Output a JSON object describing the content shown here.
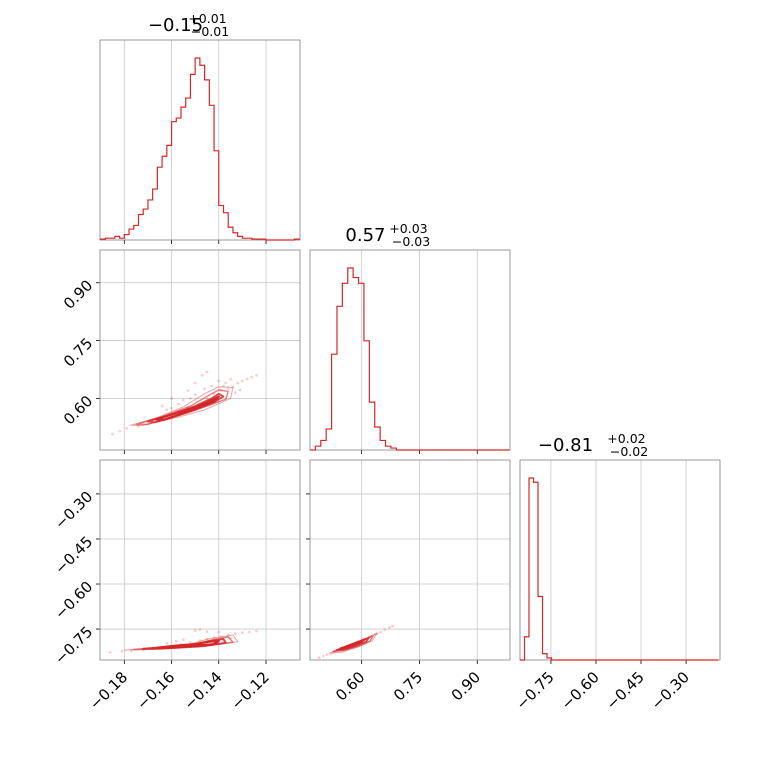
{
  "colors": {
    "series": "#d62728",
    "grid": "#c8c8c8",
    "frame": "#808080"
  },
  "titles": [
    {
      "value": "−0.15",
      "plus": "+0.01",
      "minus": "−0.01"
    },
    {
      "value": "0.57",
      "plus": "+0.03",
      "minus": "−0.03"
    },
    {
      "value": "−0.81",
      "plus": "+0.02",
      "minus": "−0.02"
    }
  ],
  "axes": {
    "p0": {
      "ticks": [
        -0.18,
        -0.16,
        -0.14,
        -0.12
      ],
      "labels": [
        "−0.18",
        "−0.16",
        "−0.14",
        "−0.12"
      ],
      "range": [
        -0.1903,
        -0.1056
      ]
    },
    "p1": {
      "ticks": [
        0.6,
        0.75,
        0.9
      ],
      "labels": [
        "0.60",
        "0.75",
        "0.90"
      ],
      "range": [
        0.466,
        0.985
      ]
    },
    "p2": {
      "ticks": [
        -0.3,
        -0.45,
        -0.6,
        -0.75
      ],
      "labels": [
        "−0.30",
        "−0.45",
        "−0.60",
        "−0.75"
      ],
      "range": [
        -0.853,
        -0.187
      ]
    }
  },
  "chart_data": {
    "type": "corner",
    "grid": true,
    "color": "#d62728",
    "parameters": [
      {
        "index": 0,
        "median": -0.15,
        "err_plus": 0.01,
        "err_minus": 0.01
      },
      {
        "index": 1,
        "median": 0.57,
        "err_plus": 0.03,
        "err_minus": 0.03
      },
      {
        "index": 2,
        "median": -0.81,
        "err_plus": 0.02,
        "err_minus": 0.02
      }
    ],
    "histograms": [
      {
        "param": 0,
        "bin_edges": [
          -0.19,
          -0.188,
          -0.186,
          -0.184,
          -0.182,
          -0.18,
          -0.178,
          -0.176,
          -0.174,
          -0.172,
          -0.17,
          -0.168,
          -0.166,
          -0.164,
          -0.162,
          -0.16,
          -0.158,
          -0.156,
          -0.154,
          -0.152,
          -0.15,
          -0.148,
          -0.146,
          -0.144,
          -0.142,
          -0.14,
          -0.138,
          -0.136,
          -0.134,
          -0.132,
          -0.13,
          -0.128,
          -0.126,
          -0.124,
          -0.122,
          -0.12,
          -0.118,
          -0.116,
          -0.114,
          -0.112,
          -0.11,
          -0.108,
          -0.106
        ],
        "counts": [
          0.005,
          0.01,
          0.01,
          0.02,
          0.01,
          0.03,
          0.06,
          0.08,
          0.14,
          0.17,
          0.22,
          0.28,
          0.4,
          0.46,
          0.52,
          0.65,
          0.67,
          0.73,
          0.78,
          0.91,
          1.0,
          0.96,
          0.88,
          0.74,
          0.49,
          0.19,
          0.15,
          0.07,
          0.04,
          0.02,
          0.01,
          0.01,
          0.005,
          0.005,
          0.005,
          0.0,
          0.0,
          0.0,
          0.0,
          0.0,
          0.0,
          0.005
        ]
      },
      {
        "param": 1,
        "bin_edges": [
          0.466,
          0.48,
          0.494,
          0.508,
          0.522,
          0.536,
          0.55,
          0.564,
          0.578,
          0.592,
          0.606,
          0.62,
          0.634,
          0.648,
          0.662,
          0.676,
          0.69,
          0.704,
          0.718,
          0.732,
          0.746,
          0.76,
          0.774,
          0.788,
          0.802,
          0.816,
          0.83,
          0.844,
          0.858,
          0.872,
          0.886,
          0.9,
          0.914,
          0.928,
          0.942,
          0.956,
          0.97,
          0.984
        ],
        "counts": [
          0.0,
          0.02,
          0.05,
          0.11,
          0.5,
          0.75,
          0.87,
          0.95,
          0.9,
          0.87,
          0.57,
          0.25,
          0.12,
          0.05,
          0.02,
          0.01,
          0.0,
          0.0,
          0.0,
          0.0,
          0.0,
          0.0,
          0.0,
          0.0,
          0.0,
          0.0,
          0.0,
          0.0,
          0.0,
          0.0,
          0.0,
          0.0,
          0.0,
          0.0,
          0.0,
          0.0,
          0.0
        ]
      },
      {
        "param": 2,
        "bin_edges": [
          -0.853,
          -0.838,
          -0.823,
          -0.808,
          -0.793,
          -0.778,
          -0.763,
          -0.748,
          -0.733,
          -0.718,
          -0.703,
          -0.688,
          -0.673,
          -0.658,
          -0.643,
          -0.628,
          -0.613,
          -0.598,
          -0.583,
          -0.568,
          -0.553,
          -0.538,
          -0.523,
          -0.508,
          -0.493,
          -0.478,
          -0.463,
          -0.448,
          -0.433,
          -0.418,
          -0.403,
          -0.388,
          -0.373,
          -0.358,
          -0.343,
          -0.328,
          -0.313,
          -0.298,
          -0.283,
          -0.268,
          -0.253,
          -0.238,
          -0.223,
          -0.208,
          -0.193
        ],
        "counts": [
          0.0,
          0.11,
          0.86,
          0.84,
          0.3,
          0.03,
          0.01,
          0.0,
          0.0,
          0.0,
          0.0,
          0.0,
          0.0,
          0.0,
          0.0,
          0.0,
          0.0,
          0.0,
          0.0,
          0.0,
          0.0,
          0.0,
          0.0,
          0.0,
          0.0,
          0.0,
          0.0,
          0.0,
          0.0,
          0.0,
          0.0,
          0.0,
          0.0,
          0.0,
          0.0,
          0.0,
          0.0,
          0.0,
          0.0,
          0.0,
          0.0,
          0.0,
          0.0,
          0.0
        ]
      }
    ],
    "pairs": [
      {
        "x_param": 0,
        "y_param": 1,
        "contours": [
          [
            [
              -0.1665,
              0.545
            ],
            [
              -0.158,
              0.562
            ],
            [
              -0.15,
              0.577
            ],
            [
              -0.142,
              0.598
            ],
            [
              -0.14,
              0.605
            ],
            [
              -0.142,
              0.592
            ],
            [
              -0.148,
              0.578
            ],
            [
              -0.156,
              0.56
            ],
            [
              -0.163,
              0.545
            ]
          ],
          [
            [
              -0.17,
              0.54
            ],
            [
              -0.16,
              0.558
            ],
            [
              -0.15,
              0.58
            ],
            [
              -0.143,
              0.6
            ],
            [
              -0.14,
              0.612
            ],
            [
              -0.138,
              0.605
            ],
            [
              -0.142,
              0.59
            ],
            [
              -0.15,
              0.57
            ],
            [
              -0.16,
              0.55
            ],
            [
              -0.167,
              0.538
            ]
          ],
          [
            [
              -0.175,
              0.532
            ],
            [
              -0.164,
              0.553
            ],
            [
              -0.152,
              0.58
            ],
            [
              -0.145,
              0.605
            ],
            [
              -0.14,
              0.622
            ],
            [
              -0.136,
              0.618
            ],
            [
              -0.137,
              0.598
            ],
            [
              -0.145,
              0.58
            ],
            [
              -0.156,
              0.558
            ],
            [
              -0.17,
              0.533
            ]
          ],
          [
            [
              -0.1775,
              0.53
            ],
            [
              -0.166,
              0.55
            ],
            [
              -0.155,
              0.578
            ],
            [
              -0.146,
              0.612
            ],
            [
              -0.14,
              0.63
            ],
            [
              -0.134,
              0.628
            ],
            [
              -0.135,
              0.6
            ],
            [
              -0.146,
              0.57
            ],
            [
              -0.158,
              0.55
            ],
            [
              -0.172,
              0.53
            ]
          ]
        ],
        "samples": [
          [
            -0.185,
            0.507
          ],
          [
            -0.179,
            0.522
          ],
          [
            -0.182,
            0.515
          ],
          [
            -0.174,
            0.528
          ],
          [
            -0.17,
            0.538
          ],
          [
            -0.166,
            0.545
          ],
          [
            -0.161,
            0.558
          ],
          [
            -0.157,
            0.567
          ],
          [
            -0.153,
            0.575
          ],
          [
            -0.148,
            0.585
          ],
          [
            -0.145,
            0.6
          ],
          [
            -0.142,
            0.612
          ],
          [
            -0.139,
            0.62
          ],
          [
            -0.136,
            0.625
          ],
          [
            -0.134,
            0.63
          ],
          [
            -0.132,
            0.64
          ],
          [
            -0.13,
            0.645
          ],
          [
            -0.128,
            0.65
          ],
          [
            -0.126,
            0.655
          ],
          [
            -0.124,
            0.66
          ],
          [
            -0.135,
            0.65
          ],
          [
            -0.137,
            0.64
          ],
          [
            -0.14,
            0.645
          ],
          [
            -0.143,
            0.632
          ],
          [
            -0.146,
            0.625
          ],
          [
            -0.15,
            0.61
          ],
          [
            -0.152,
            0.6
          ],
          [
            -0.155,
            0.595
          ],
          [
            -0.157,
            0.585
          ],
          [
            -0.16,
            0.575
          ],
          [
            -0.162,
            0.57
          ],
          [
            -0.147,
            0.66
          ],
          [
            -0.145,
            0.668
          ],
          [
            -0.138,
            0.632
          ],
          [
            -0.133,
            0.615
          ],
          [
            -0.131,
            0.622
          ],
          [
            -0.15,
            0.64
          ],
          [
            -0.153,
            0.62
          ],
          [
            -0.16,
            0.6
          ],
          [
            -0.164,
            0.58
          ]
        ]
      },
      {
        "x_param": 0,
        "y_param": 2,
        "contours": [
          [
            [
              -0.166,
              -0.812
            ],
            [
              -0.158,
              -0.805
            ],
            [
              -0.15,
              -0.8
            ],
            [
              -0.144,
              -0.792
            ],
            [
              -0.14,
              -0.79
            ],
            [
              -0.142,
              -0.8
            ],
            [
              -0.15,
              -0.806
            ],
            [
              -0.158,
              -0.81
            ]
          ],
          [
            [
              -0.172,
              -0.815
            ],
            [
              -0.16,
              -0.808
            ],
            [
              -0.15,
              -0.802
            ],
            [
              -0.144,
              -0.79
            ],
            [
              -0.138,
              -0.783
            ],
            [
              -0.137,
              -0.795
            ],
            [
              -0.145,
              -0.805
            ],
            [
              -0.16,
              -0.813
            ]
          ],
          [
            [
              -0.176,
              -0.818
            ],
            [
              -0.162,
              -0.81
            ],
            [
              -0.15,
              -0.8
            ],
            [
              -0.143,
              -0.786
            ],
            [
              -0.136,
              -0.776
            ],
            [
              -0.134,
              -0.794
            ],
            [
              -0.146,
              -0.807
            ],
            [
              -0.164,
              -0.816
            ]
          ],
          [
            [
              -0.18,
              -0.82
            ],
            [
              -0.166,
              -0.812
            ],
            [
              -0.152,
              -0.8
            ],
            [
              -0.144,
              -0.782
            ],
            [
              -0.134,
              -0.77
            ],
            [
              -0.132,
              -0.792
            ],
            [
              -0.148,
              -0.81
            ],
            [
              -0.168,
              -0.818
            ]
          ]
        ],
        "samples": [
          [
            -0.186,
            -0.828
          ],
          [
            -0.181,
            -0.824
          ],
          [
            -0.177,
            -0.822
          ],
          [
            -0.172,
            -0.82
          ],
          [
            -0.168,
            -0.815
          ],
          [
            -0.164,
            -0.81
          ],
          [
            -0.16,
            -0.806
          ],
          [
            -0.156,
            -0.8
          ],
          [
            -0.152,
            -0.795
          ],
          [
            -0.148,
            -0.788
          ],
          [
            -0.145,
            -0.783
          ],
          [
            -0.142,
            -0.778
          ],
          [
            -0.139,
            -0.775
          ],
          [
            -0.136,
            -0.77
          ],
          [
            -0.133,
            -0.765
          ],
          [
            -0.13,
            -0.762
          ],
          [
            -0.127,
            -0.76
          ],
          [
            -0.124,
            -0.757
          ],
          [
            -0.15,
            -0.755
          ],
          [
            -0.148,
            -0.752
          ],
          [
            -0.145,
            -0.758
          ],
          [
            -0.14,
            -0.76
          ],
          [
            -0.155,
            -0.785
          ],
          [
            -0.158,
            -0.79
          ],
          [
            -0.162,
            -0.798
          ],
          [
            -0.135,
            -0.78
          ],
          [
            -0.138,
            -0.79
          ],
          [
            -0.141,
            -0.795
          ]
        ]
      },
      {
        "x_param": 1,
        "y_param": 2,
        "contours": [
          [
            [
              0.545,
              -0.815
            ],
            [
              0.56,
              -0.808
            ],
            [
              0.578,
              -0.8
            ],
            [
              0.598,
              -0.79
            ],
            [
              0.605,
              -0.787
            ],
            [
              0.595,
              -0.796
            ],
            [
              0.575,
              -0.806
            ],
            [
              0.555,
              -0.814
            ]
          ],
          [
            [
              0.535,
              -0.82
            ],
            [
              0.556,
              -0.81
            ],
            [
              0.58,
              -0.798
            ],
            [
              0.605,
              -0.786
            ],
            [
              0.618,
              -0.78
            ],
            [
              0.612,
              -0.792
            ],
            [
              0.585,
              -0.806
            ],
            [
              0.555,
              -0.818
            ]
          ],
          [
            [
              0.525,
              -0.825
            ],
            [
              0.552,
              -0.814
            ],
            [
              0.582,
              -0.797
            ],
            [
              0.612,
              -0.782
            ],
            [
              0.63,
              -0.772
            ],
            [
              0.622,
              -0.79
            ],
            [
              0.59,
              -0.808
            ],
            [
              0.55,
              -0.822
            ]
          ],
          [
            [
              0.518,
              -0.83
            ],
            [
              0.548,
              -0.816
            ],
            [
              0.582,
              -0.796
            ],
            [
              0.616,
              -0.778
            ],
            [
              0.64,
              -0.764
            ],
            [
              0.628,
              -0.788
            ],
            [
              0.594,
              -0.808
            ],
            [
              0.548,
              -0.827
            ]
          ]
        ],
        "samples": [
          [
            0.49,
            -0.845
          ],
          [
            0.5,
            -0.84
          ],
          [
            0.51,
            -0.835
          ],
          [
            0.52,
            -0.832
          ],
          [
            0.53,
            -0.826
          ],
          [
            0.545,
            -0.818
          ],
          [
            0.56,
            -0.81
          ],
          [
            0.575,
            -0.8
          ],
          [
            0.59,
            -0.792
          ],
          [
            0.605,
            -0.783
          ],
          [
            0.62,
            -0.775
          ],
          [
            0.635,
            -0.768
          ],
          [
            0.65,
            -0.76
          ],
          [
            0.66,
            -0.752
          ],
          [
            0.672,
            -0.745
          ],
          [
            0.68,
            -0.74
          ],
          [
            0.64,
            -0.765
          ],
          [
            0.625,
            -0.778
          ],
          [
            0.61,
            -0.788
          ],
          [
            0.595,
            -0.798
          ],
          [
            0.58,
            -0.806
          ]
        ]
      }
    ]
  }
}
